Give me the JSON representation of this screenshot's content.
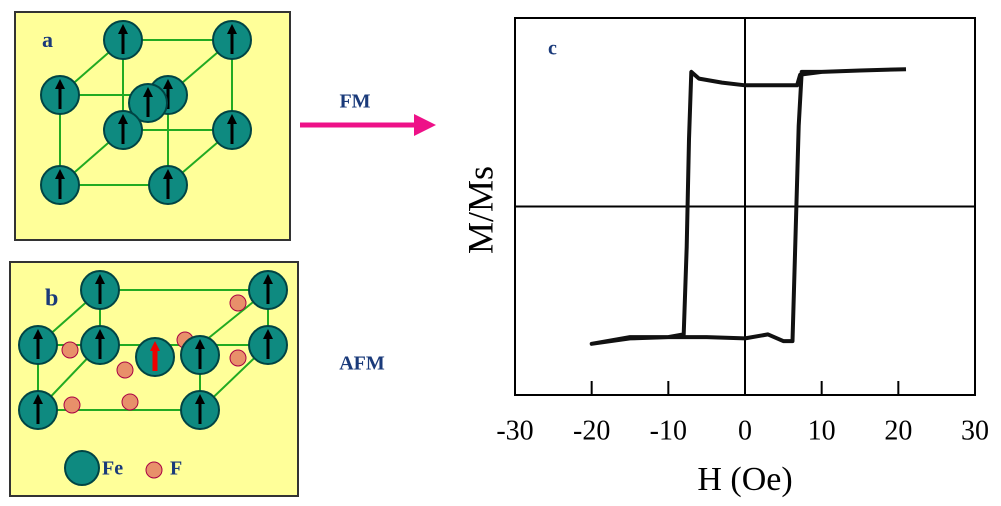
{
  "diagram": {
    "panel_a": "a",
    "panel_b": "b",
    "fm_label": "FM",
    "afm_label": "AFM",
    "legend_fe": "Fe",
    "legend_f": "F"
  },
  "chart_data": {
    "type": "line",
    "panel_label": "c",
    "xlabel": "H (Oe)",
    "ylabel": "M/Ms",
    "x": [
      21,
      15,
      10,
      7.2,
      6.8,
      3,
      0,
      -3,
      -6,
      -7,
      -7.3,
      -7.6,
      -8,
      -10,
      -15,
      -20,
      -15,
      -10,
      -5,
      0,
      3,
      5,
      6.2,
      6.6,
      7,
      7.4,
      10,
      15,
      21
    ],
    "values": [
      1.02,
      1.01,
      1.0,
      0.98,
      0.9,
      0.9,
      0.9,
      0.92,
      0.95,
      1.0,
      0.5,
      -0.3,
      -0.95,
      -0.97,
      -0.98,
      -1.02,
      -0.97,
      -0.97,
      -0.97,
      -0.98,
      -0.95,
      -1.0,
      -1.0,
      -0.2,
      0.6,
      1.0,
      1.0,
      1.01,
      1.02
    ],
    "color": "#111111",
    "xlim": [
      -30,
      30
    ],
    "xticks": [
      -30,
      -20,
      -10,
      0,
      10,
      20,
      30
    ],
    "ylim": [
      -1.4,
      1.4
    ],
    "zero_lines": true
  }
}
